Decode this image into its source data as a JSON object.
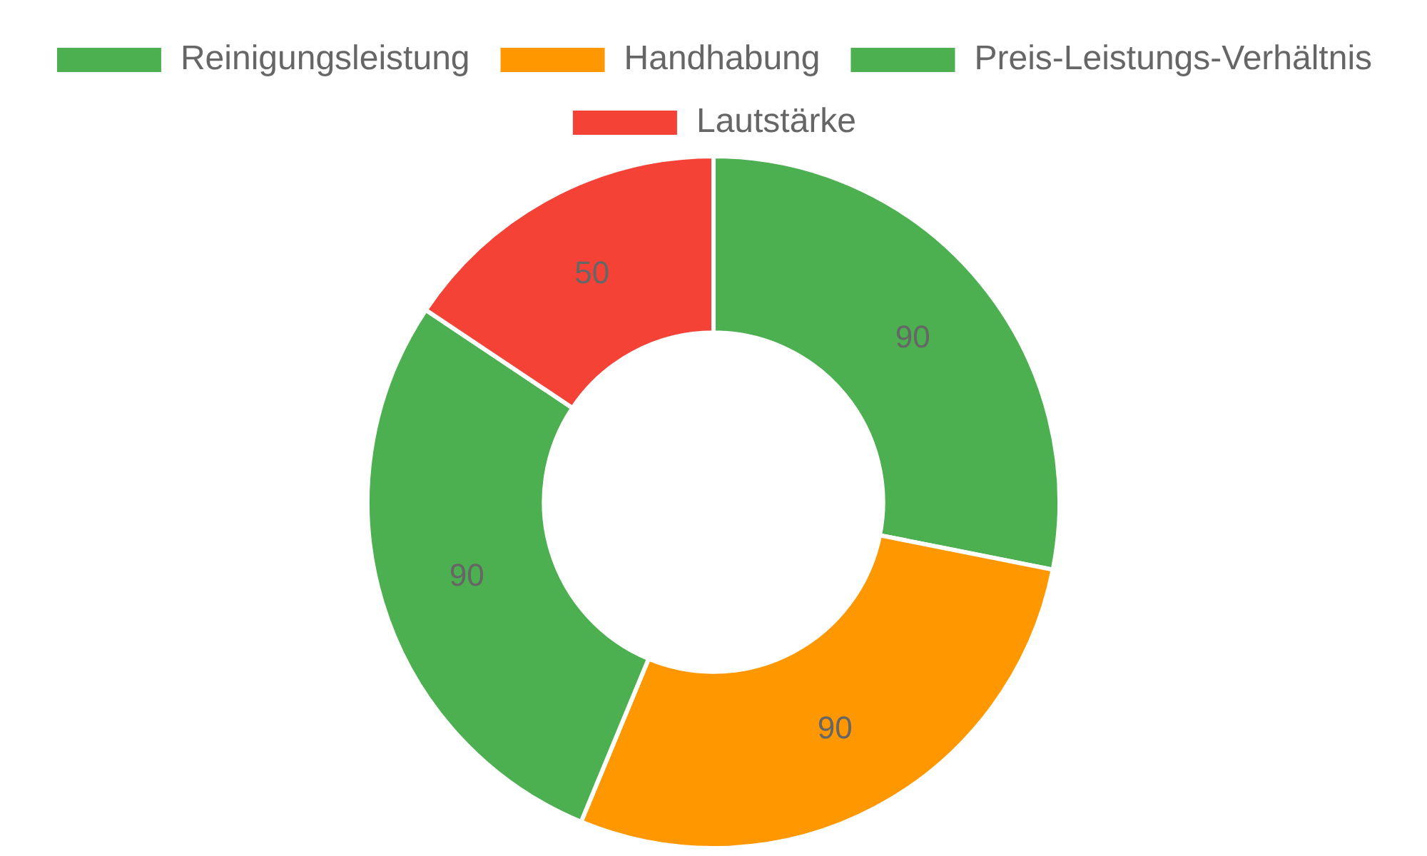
{
  "chart_data": {
    "type": "donut",
    "categories": [
      "Reinigungsleistung",
      "Handhabung",
      "Preis-Leistungs-Verhältnis",
      "Lautstärke"
    ],
    "values": [
      90,
      90,
      90,
      50
    ],
    "colors": [
      "#4caf50",
      "#ff9800",
      "#4caf50",
      "#f44336"
    ],
    "legend": "top",
    "data_labels": true
  }
}
